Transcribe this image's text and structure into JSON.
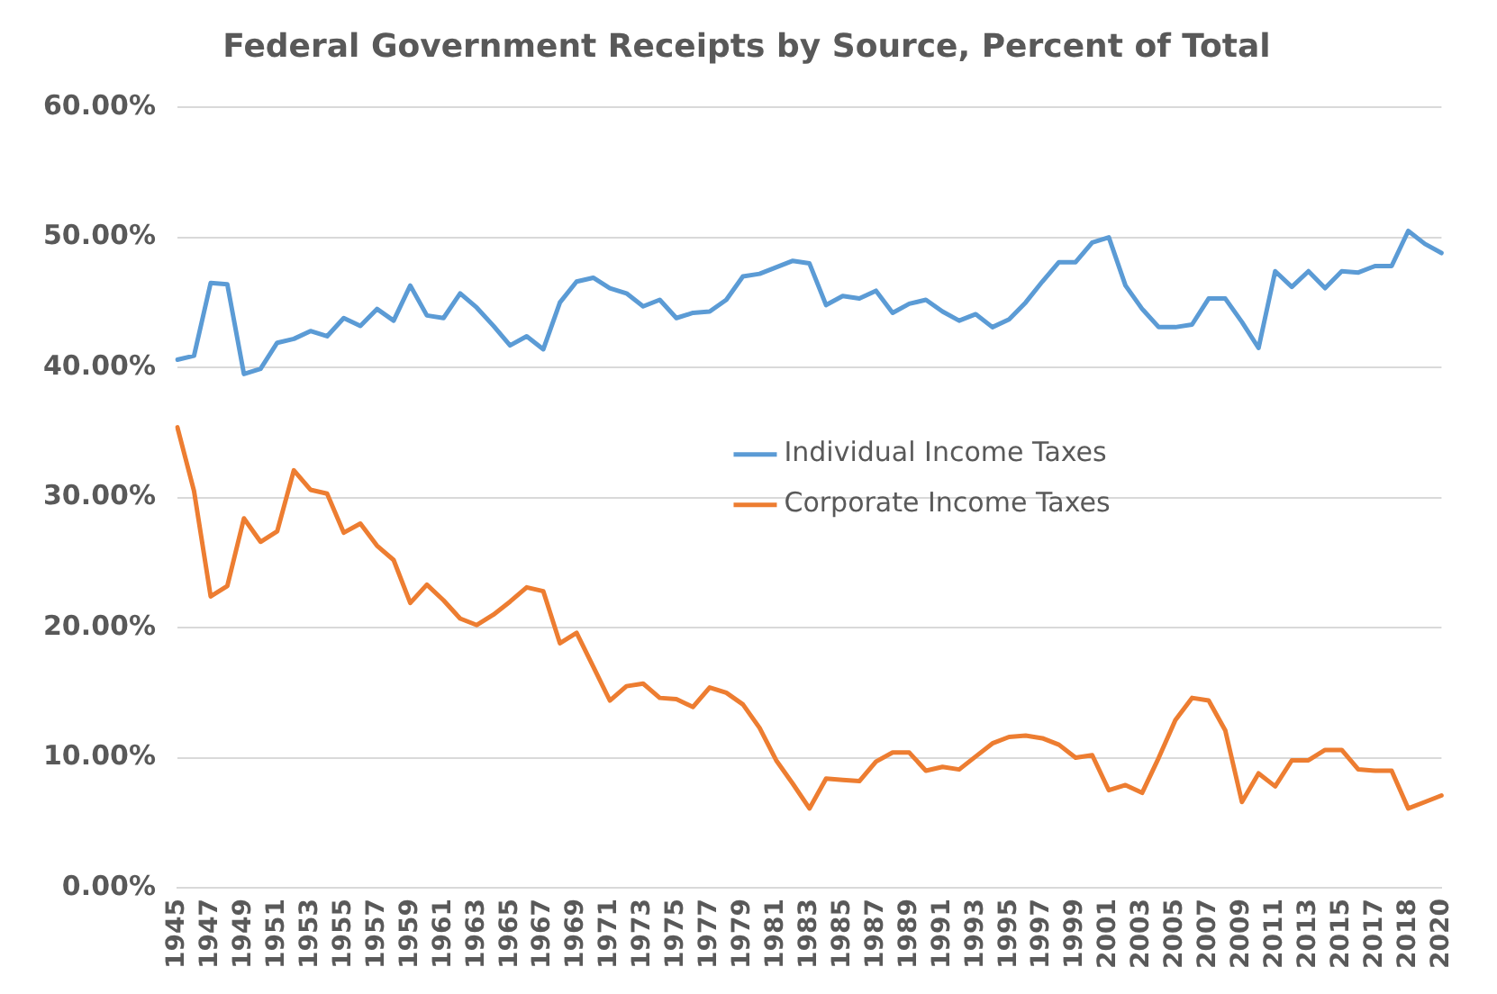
{
  "chart_data": {
    "type": "line",
    "title": "Federal Government Receipts by Source, Percent of Total",
    "categories": [
      "1945",
      null,
      "1947",
      null,
      "1949",
      null,
      "1951",
      null,
      "1953",
      null,
      "1955",
      null,
      "1957",
      null,
      "1959",
      null,
      "1961",
      null,
      "1963",
      null,
      "1965",
      null,
      "1967",
      null,
      "1969",
      null,
      "1971",
      null,
      "1973",
      null,
      "1975",
      null,
      "1977",
      null,
      "1979",
      null,
      "1981",
      null,
      "1983",
      null,
      "1985",
      null,
      "1987",
      null,
      "1989",
      null,
      "1991",
      null,
      "1993",
      null,
      "1995",
      null,
      "1997",
      null,
      "1999",
      null,
      "2001",
      null,
      "2003",
      null,
      "2005",
      null,
      "2007",
      null,
      "2009",
      null,
      "2011",
      null,
      "2013",
      null,
      "2015",
      null,
      "2017",
      null,
      "2018",
      null,
      "2020"
    ],
    "series": [
      {
        "name": "Individual Income Taxes",
        "color": "#5b9bd5",
        "values": [
          40.6,
          40.9,
          46.5,
          46.4,
          39.5,
          39.9,
          41.9,
          42.2,
          42.8,
          42.4,
          43.8,
          43.2,
          44.5,
          43.6,
          46.3,
          44.0,
          43.8,
          45.7,
          44.6,
          43.2,
          41.7,
          42.4,
          41.4,
          45.0,
          46.6,
          46.9,
          46.1,
          45.7,
          44.7,
          45.2,
          43.8,
          44.2,
          44.3,
          45.2,
          47.0,
          47.2,
          47.7,
          48.2,
          48.0,
          44.8,
          45.5,
          45.3,
          45.9,
          44.2,
          44.9,
          45.2,
          44.3,
          43.6,
          44.1,
          43.1,
          43.7,
          45.0,
          46.6,
          48.1,
          48.1,
          49.6,
          50.0,
          46.3,
          44.5,
          43.1,
          43.1,
          43.3,
          45.3,
          45.3,
          43.5,
          41.5,
          47.4,
          46.2,
          47.4,
          46.1,
          47.4,
          47.3,
          47.8,
          47.8,
          50.5,
          49.5,
          48.8
        ]
      },
      {
        "name": "Corporate Income Taxes",
        "color": "#ed7d31",
        "values": [
          35.4,
          30.5,
          22.4,
          23.2,
          28.4,
          26.6,
          27.4,
          32.1,
          30.6,
          30.3,
          27.3,
          28.0,
          26.3,
          25.2,
          21.9,
          23.3,
          22.1,
          20.7,
          20.2,
          21.0,
          22.0,
          23.1,
          22.8,
          18.8,
          19.6,
          17.0,
          14.4,
          15.5,
          15.7,
          14.6,
          14.5,
          13.9,
          15.4,
          15.0,
          14.1,
          12.3,
          9.8,
          8.0,
          6.1,
          8.4,
          8.3,
          8.2,
          9.7,
          10.4,
          10.4,
          9.0,
          9.3,
          9.1,
          10.1,
          11.1,
          11.6,
          11.7,
          11.5,
          11.0,
          10.0,
          10.2,
          7.5,
          7.9,
          7.3,
          10.0,
          12.9,
          14.6,
          14.4,
          12.1,
          6.6,
          8.8,
          7.8,
          9.8,
          9.8,
          10.6,
          10.6,
          9.1,
          9.0,
          9.0,
          6.1,
          6.6,
          7.1
        ]
      }
    ],
    "ylim": [
      0,
      60
    ],
    "yticks": [
      {
        "value": 0,
        "label": "0.00%"
      },
      {
        "value": 10,
        "label": "10.00%"
      },
      {
        "value": 20,
        "label": "20.00%"
      },
      {
        "value": 30,
        "label": "30.00%"
      },
      {
        "value": 40,
        "label": "40.00%"
      },
      {
        "value": 50,
        "label": "50.00%"
      },
      {
        "value": 60,
        "label": "60.00%"
      }
    ],
    "grid": "y",
    "legend": "center",
    "marker": "none",
    "line_style": "solid"
  }
}
